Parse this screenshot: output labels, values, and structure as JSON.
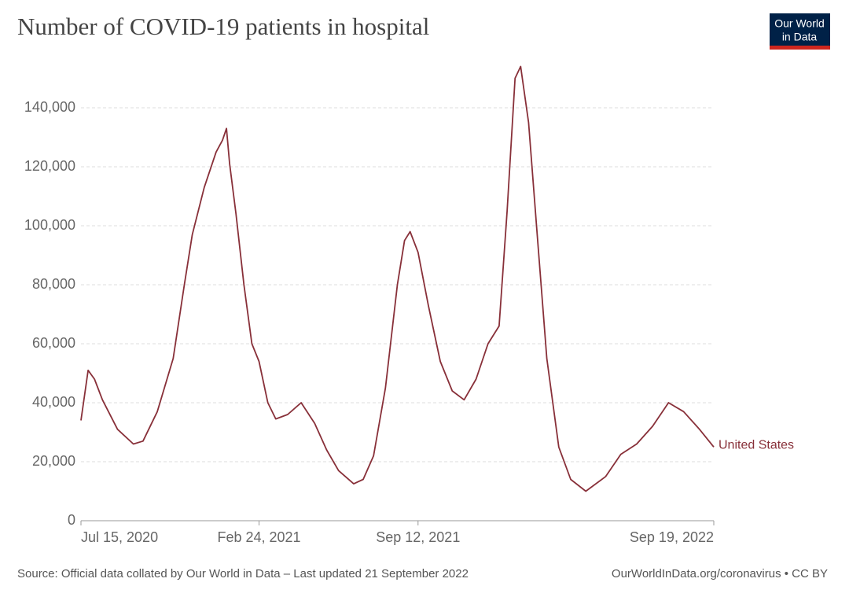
{
  "chart_data": {
    "type": "line",
    "title": "Number of COVID-19 patients in hospital",
    "logo": [
      "Our World",
      "in Data"
    ],
    "source": "Source: Official data collated by Our World in Data – Last updated 21 September 2022",
    "license": "OurWorldInData.org/coronavirus • CC BY",
    "x": [
      "2020-07-15",
      "2020-07-24",
      "2020-08-01",
      "2020-08-11",
      "2020-08-30",
      "2020-09-19",
      "2020-10-01",
      "2020-10-19",
      "2020-11-08",
      "2020-11-22",
      "2020-12-02",
      "2020-12-17",
      "2021-01-01",
      "2021-01-09",
      "2021-01-14",
      "2021-01-18",
      "2021-01-26",
      "2021-02-05",
      "2021-02-15",
      "2021-02-24",
      "2021-03-07",
      "2021-03-17",
      "2021-04-01",
      "2021-04-18",
      "2021-05-05",
      "2021-05-20",
      "2021-06-04",
      "2021-06-23",
      "2021-07-05",
      "2021-07-18",
      "2021-08-02",
      "2021-08-17",
      "2021-08-26",
      "2021-09-02",
      "2021-09-12",
      "2021-09-25",
      "2021-10-10",
      "2021-10-25",
      "2021-11-09",
      "2021-11-24",
      "2021-12-09",
      "2021-12-23",
      "2022-01-02",
      "2022-01-12",
      "2022-01-19",
      "2022-01-29",
      "2022-02-08",
      "2022-02-21",
      "2022-03-08",
      "2022-03-23",
      "2022-04-11",
      "2022-05-06",
      "2022-05-25",
      "2022-06-14",
      "2022-07-04",
      "2022-07-24",
      "2022-08-12",
      "2022-09-01",
      "2022-09-19"
    ],
    "series": [
      {
        "name": "United States",
        "color": "#883039",
        "values": [
          34000,
          51000,
          48000,
          41000,
          31000,
          26000,
          27000,
          37000,
          55000,
          80000,
          97000,
          113000,
          125000,
          129000,
          133000,
          121000,
          104000,
          80000,
          60000,
          54000,
          40000,
          34500,
          36000,
          40000,
          33000,
          24000,
          17000,
          12500,
          14000,
          22000,
          45000,
          80000,
          95000,
          98000,
          91000,
          73000,
          54000,
          44000,
          41000,
          48000,
          60000,
          66000,
          105000,
          150000,
          154000,
          135000,
          100000,
          55000,
          25000,
          14000,
          10000,
          15000,
          22500,
          26000,
          32000,
          40000,
          37000,
          31000,
          25000
        ]
      }
    ],
    "xlim": [
      "2020-07-15",
      "2022-09-19"
    ],
    "xticks": [
      {
        "value": "2020-07-15",
        "label": "Jul 15, 2020"
      },
      {
        "value": "2021-02-24",
        "label": "Feb 24, 2021"
      },
      {
        "value": "2021-09-12",
        "label": "Sep 12, 2021"
      },
      {
        "value": "2022-09-19",
        "label": "Sep 19, 2022"
      }
    ],
    "ylim": [
      0,
      140000
    ],
    "yticks": [
      0,
      {
        "value": 20000,
        "label": "20,000"
      },
      {
        "value": 40000,
        "label": "40,000"
      },
      {
        "value": 60000,
        "label": "60,000"
      },
      {
        "value": 80000,
        "label": "80,000"
      },
      {
        "value": 100000,
        "label": "100,000"
      },
      {
        "value": 120000,
        "label": "120,000"
      },
      {
        "value": 140000,
        "label": "140,000"
      }
    ],
    "grid": true
  }
}
